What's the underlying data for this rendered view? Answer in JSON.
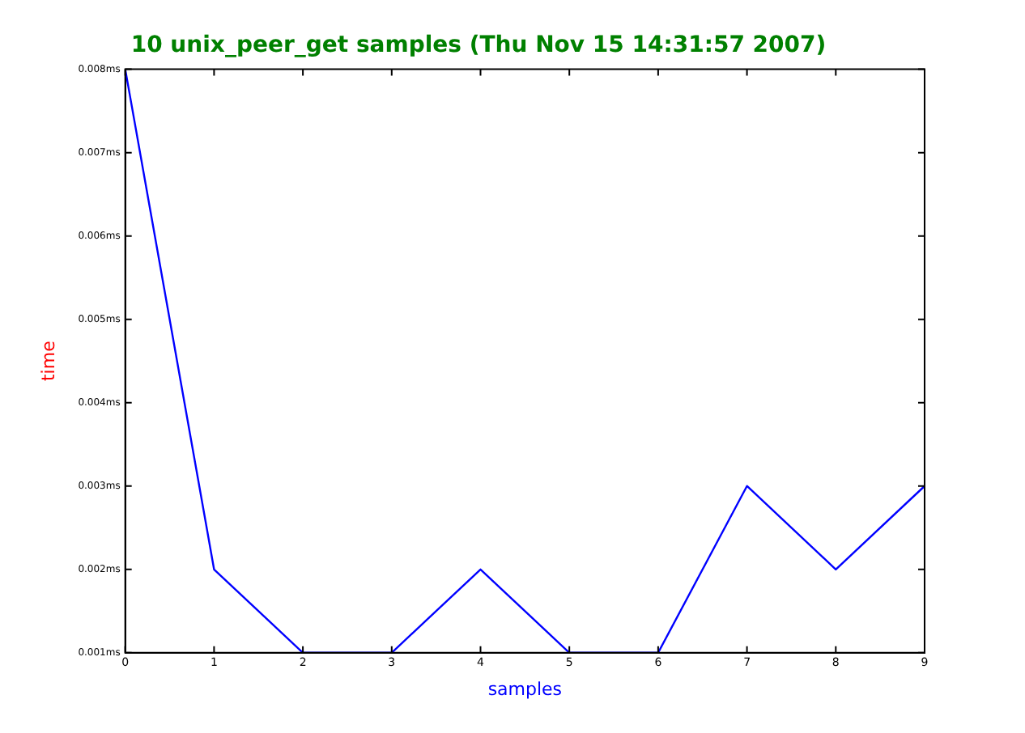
{
  "chart_data": {
    "type": "line",
    "title": "10 unix_peer_get samples (Thu Nov 15 14:31:57 2007)",
    "xlabel": "samples",
    "ylabel": "time",
    "x": [
      0,
      1,
      2,
      3,
      4,
      5,
      6,
      7,
      8,
      9
    ],
    "series": [
      {
        "color": "#0000ff",
        "values": [
          0.008,
          0.002,
          0.001,
          0.001,
          0.002,
          0.001,
          0.001,
          0.003,
          0.002,
          0.003
        ]
      }
    ],
    "xlim": [
      0,
      9
    ],
    "xticks": [
      0,
      1,
      2,
      3,
      4,
      5,
      6,
      7,
      8,
      9
    ],
    "ylim": [
      0.001,
      0.008
    ],
    "yticks": [
      {
        "value": 0.001,
        "label": "0.001ms"
      },
      {
        "value": 0.002,
        "label": "0.002ms"
      },
      {
        "value": 0.003,
        "label": "0.003ms"
      },
      {
        "value": 0.004,
        "label": "0.004ms"
      },
      {
        "value": 0.005,
        "label": "0.005ms"
      },
      {
        "value": 0.006,
        "label": "0.006ms"
      },
      {
        "value": 0.007,
        "label": "0.007ms"
      },
      {
        "value": 0.008,
        "label": "0.008ms"
      }
    ],
    "grid": false,
    "legend": false,
    "marker": "none",
    "line_style": "solid"
  }
}
